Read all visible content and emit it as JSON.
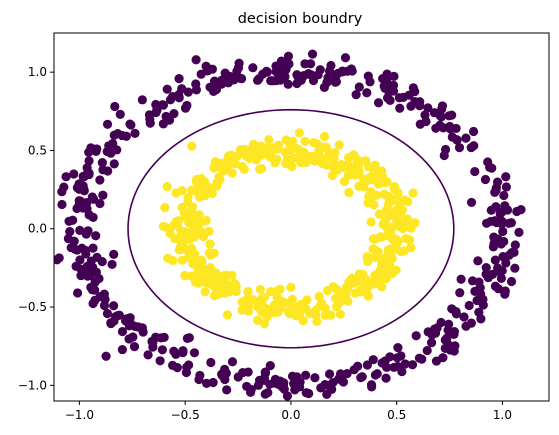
{
  "chart_data": {
    "type": "scatter",
    "title": "decision boundry",
    "xlabel": "",
    "ylabel": "",
    "xlim": [
      -1.12,
      1.22
    ],
    "ylim": [
      -1.1,
      1.25
    ],
    "xticks": [
      -1.0,
      -0.5,
      0.0,
      0.5,
      1.0
    ],
    "xtick_labels": [
      "−1.0",
      "−0.5",
      "0.0",
      "0.5",
      "1.0"
    ],
    "yticks": [
      -1.0,
      -0.5,
      0.0,
      0.5,
      1.0
    ],
    "ytick_labels": [
      "−1.0",
      "−0.5",
      "0.0",
      "0.5",
      "1.0"
    ],
    "grid": false,
    "series": [
      {
        "class": 0,
        "color": "#440154",
        "shape": "ring",
        "center": [
          0.0,
          0.0
        ],
        "radius": 1.0,
        "noise_sd": 0.05,
        "n_points": 500
      },
      {
        "class": 1,
        "color": "#fde725",
        "shape": "ring",
        "center": [
          0.0,
          0.0
        ],
        "radius": 0.5,
        "noise_sd": 0.05,
        "n_points": 500
      }
    ],
    "decision_boundary": {
      "color": "#440154",
      "shape": "ellipse",
      "center": [
        0.0,
        0.0
      ],
      "rx": 0.77,
      "ry": 0.76
    }
  }
}
